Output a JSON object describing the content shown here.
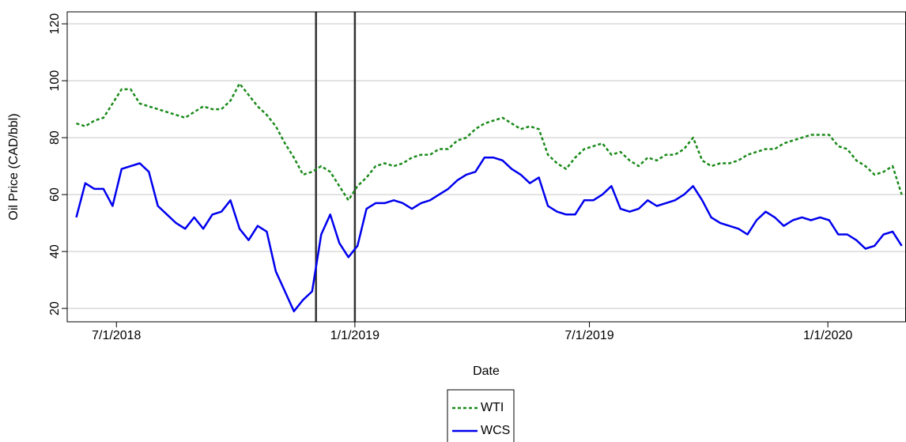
{
  "chart_data": {
    "type": "line",
    "x_label": "Date",
    "y_label": "Oil Price (CAD/bbl)",
    "x": [
      "5/31/2018",
      "6/7/2018",
      "6/14/2018",
      "6/21/2018",
      "6/28/2018",
      "7/5/2018",
      "7/12/2018",
      "7/19/2018",
      "7/26/2018",
      "8/2/2018",
      "8/9/2018",
      "8/16/2018",
      "8/23/2018",
      "8/30/2018",
      "9/6/2018",
      "9/13/2018",
      "9/20/2018",
      "9/27/2018",
      "10/4/2018",
      "10/11/2018",
      "10/18/2018",
      "10/25/2018",
      "11/1/2018",
      "11/8/2018",
      "11/15/2018",
      "11/22/2018",
      "11/29/2018",
      "12/6/2018",
      "12/13/2018",
      "12/20/2018",
      "12/27/2018",
      "1/3/2019",
      "1/10/2019",
      "1/17/2019",
      "1/24/2019",
      "1/31/2019",
      "2/7/2019",
      "2/14/2019",
      "2/21/2019",
      "2/28/2019",
      "3/7/2019",
      "3/14/2019",
      "3/21/2019",
      "3/28/2019",
      "4/4/2019",
      "4/11/2019",
      "4/18/2019",
      "4/25/2019",
      "5/2/2019",
      "5/9/2019",
      "5/16/2019",
      "5/23/2019",
      "5/30/2019",
      "6/6/2019",
      "6/13/2019",
      "6/20/2019",
      "6/27/2019",
      "7/4/2019",
      "7/11/2019",
      "7/18/2019",
      "7/25/2019",
      "8/1/2019",
      "8/8/2019",
      "8/15/2019",
      "8/22/2019",
      "8/29/2019",
      "9/5/2019",
      "9/12/2019",
      "9/19/2019",
      "9/26/2019",
      "10/3/2019",
      "10/10/2019",
      "10/17/2019",
      "10/24/2019",
      "10/31/2019",
      "11/7/2019",
      "11/14/2019",
      "11/21/2019",
      "11/28/2019",
      "12/5/2019",
      "12/12/2019",
      "12/19/2019",
      "12/26/2019",
      "1/2/2020",
      "1/9/2020",
      "1/16/2020",
      "1/23/2020",
      "1/30/2020",
      "2/6/2020",
      "2/13/2020",
      "2/20/2020",
      "2/27/2020"
    ],
    "series": [
      {
        "name": "WTI",
        "color": "#1a8a1a",
        "dashed": true,
        "values": [
          85,
          84,
          86,
          87,
          92,
          97,
          97,
          92,
          91,
          90,
          89,
          88,
          87,
          89,
          91,
          90,
          90,
          93,
          99,
          95,
          91,
          88,
          84,
          78,
          73,
          67,
          68,
          70,
          68,
          63,
          58,
          63,
          66,
          70,
          71,
          70,
          71,
          73,
          74,
          74,
          76,
          76,
          79,
          80,
          83,
          85,
          86,
          87,
          85,
          83,
          84,
          83,
          74,
          71,
          69,
          73,
          76,
          77,
          78,
          74,
          75,
          72,
          70,
          73,
          72,
          74,
          74,
          76,
          80,
          72,
          70,
          71,
          71,
          72,
          74,
          75,
          76,
          76,
          78,
          79,
          80,
          81,
          81,
          81,
          77,
          76,
          72,
          70,
          67,
          68,
          70,
          60
        ]
      },
      {
        "name": "WCS",
        "color": "#0000ee",
        "dashed": false,
        "values": [
          52,
          64,
          62,
          62,
          56,
          69,
          70,
          71,
          68,
          56,
          53,
          50,
          48,
          52,
          48,
          53,
          54,
          58,
          48,
          44,
          49,
          47,
          33,
          26,
          19,
          23,
          26,
          46,
          53,
          43,
          38,
          42,
          55,
          57,
          57,
          58,
          57,
          55,
          57,
          58,
          60,
          62,
          65,
          67,
          68,
          73,
          73,
          72,
          69,
          67,
          64,
          66,
          56,
          54,
          53,
          53,
          58,
          58,
          60,
          63,
          55,
          54,
          55,
          58,
          56,
          57,
          58,
          60,
          63,
          58,
          52,
          50,
          49,
          48,
          46,
          51,
          54,
          52,
          49,
          51,
          52,
          51,
          52,
          51,
          46,
          46,
          44,
          41,
          42,
          46,
          47,
          42
        ]
      }
    ],
    "vlines": [
      "12/2/2018",
      "1/1/2019"
    ],
    "xlim": [
      "5/24/2018",
      "3/1/2020"
    ],
    "xticks": [
      "7/1/2018",
      "1/1/2019",
      "7/1/2019",
      "1/1/2020"
    ],
    "ylim": [
      15.3,
      124.2
    ],
    "yticks": [
      20,
      40,
      60,
      80,
      100,
      120
    ],
    "grid": true,
    "legend": "bottom"
  }
}
